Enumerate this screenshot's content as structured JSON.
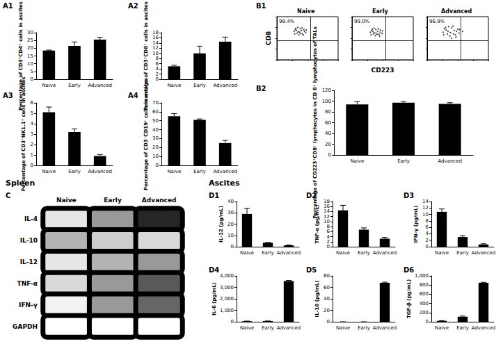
{
  "sections": [
    "Spleen",
    "Ascites"
  ],
  "chart_data": [
    {
      "panel": "A1",
      "type": "bar",
      "ylabel": "Percentage of CD3⁺CD4⁺ cells in ascites",
      "categories": [
        "Naive",
        "Early",
        "Advanced"
      ],
      "values": [
        18.5,
        21.5,
        25.5
      ],
      "errors": [
        0.3,
        2.5,
        1.5
      ],
      "color": "#000000",
      "ylim": [
        0,
        30
      ],
      "yticks": [
        0,
        5,
        10,
        15,
        20,
        25,
        30
      ],
      "grid": false
    },
    {
      "panel": "A2",
      "type": "bar",
      "ylabel": "Percentage of CD3⁺CD8⁺ cells in ascites",
      "categories": [
        "Naive",
        "Early",
        "Advanced"
      ],
      "values": [
        5,
        10,
        14.5
      ],
      "errors": [
        0.4,
        2.8,
        1.8
      ],
      "color": "#000000",
      "ylim": [
        0,
        18
      ],
      "yticks": [
        0,
        2,
        4,
        6,
        8,
        10,
        12,
        14,
        16,
        18
      ],
      "grid": false
    },
    {
      "panel": "A3",
      "type": "bar",
      "ylabel": "Percentage of CD3⁻NK1.1⁺ cells in ascites",
      "categories": [
        "Naive",
        "Early",
        "Advanced"
      ],
      "values": [
        5.1,
        3.2,
        0.9
      ],
      "errors": [
        0.5,
        0.3,
        0.15
      ],
      "color": "#000000",
      "ylim": [
        0,
        6
      ],
      "yticks": [
        0,
        1,
        2,
        3,
        4,
        5,
        6
      ],
      "grid": false
    },
    {
      "panel": "A4",
      "type": "bar",
      "ylabel": "Percentage of CD3⁻CD19⁺ cells in ascites",
      "categories": [
        "Naive",
        "Early",
        "Advanced"
      ],
      "values": [
        55,
        51,
        25
      ],
      "errors": [
        3,
        1,
        3
      ],
      "color": "#000000",
      "ylim": [
        0,
        70
      ],
      "yticks": [
        0,
        10,
        20,
        30,
        40,
        50,
        60,
        70
      ],
      "grid": false
    },
    {
      "panel": "B1",
      "type": "scatter",
      "xlabel": "CD223",
      "ylabel": "CD8",
      "xlim": [
        0,
        100
      ],
      "ylim": [
        0,
        100
      ],
      "xticks": [
        0,
        25,
        50,
        75,
        100
      ],
      "yticks": [
        0,
        25,
        50,
        75,
        100
      ],
      "tick_labels": false,
      "color": "#000000",
      "gate": {
        "x": 55,
        "y": 45
      },
      "panels": [
        {
          "title": "Naive",
          "annotation": "98.4%",
          "points": [
            [
              30,
              70
            ],
            [
              35,
              65
            ],
            [
              38,
              72
            ],
            [
              40,
              68
            ],
            [
              42,
              60
            ],
            [
              33,
              62
            ],
            [
              45,
              66
            ],
            [
              36,
              58
            ],
            [
              28,
              66
            ],
            [
              41,
              74
            ],
            [
              37,
              64
            ],
            [
              44,
              70
            ],
            [
              32,
              68
            ],
            [
              39,
              61
            ],
            [
              47,
              63
            ],
            [
              34,
              75
            ],
            [
              43,
              57
            ],
            [
              29,
              60
            ],
            [
              48,
              69
            ],
            [
              31,
              73
            ]
          ]
        },
        {
          "title": "Early",
          "annotation": "99.0%",
          "points": [
            [
              32,
              68
            ],
            [
              36,
              63
            ],
            [
              39,
              70
            ],
            [
              42,
              66
            ],
            [
              44,
              59
            ],
            [
              35,
              60
            ],
            [
              46,
              64
            ],
            [
              38,
              56
            ],
            [
              30,
              64
            ],
            [
              43,
              72
            ],
            [
              39,
              62
            ],
            [
              46,
              69
            ],
            [
              34,
              66
            ],
            [
              41,
              59
            ],
            [
              49,
              61
            ],
            [
              36,
              73
            ],
            [
              45,
              55
            ],
            [
              31,
              58
            ],
            [
              50,
              67
            ],
            [
              33,
              71
            ]
          ]
        },
        {
          "title": "Advanced",
          "annotation": "96.9%",
          "points": [
            [
              28,
              72
            ],
            [
              34,
              66
            ],
            [
              40,
              74
            ],
            [
              44,
              68
            ],
            [
              46,
              58
            ],
            [
              33,
              60
            ],
            [
              48,
              66
            ],
            [
              37,
              55
            ],
            [
              26,
              64
            ],
            [
              42,
              78
            ],
            [
              38,
              63
            ],
            [
              50,
              71
            ],
            [
              31,
              69
            ],
            [
              43,
              60
            ],
            [
              52,
              62
            ],
            [
              35,
              77
            ],
            [
              47,
              53
            ],
            [
              27,
              58
            ],
            [
              53,
              70
            ],
            [
              30,
              75
            ],
            [
              40,
              50
            ],
            [
              58,
              66
            ]
          ]
        }
      ]
    },
    {
      "panel": "B2",
      "type": "bar",
      "ylabel": "Percentage of CD223⁺CD8⁺ lymphocytes in CD 8⁺ lymphocytes of TALs",
      "categories": [
        "Naive",
        "Early",
        "Advanced"
      ],
      "values": [
        94,
        97,
        95
      ],
      "errors": [
        5,
        2,
        2
      ],
      "color": "#000000",
      "ylim": [
        0,
        120
      ],
      "yticks": [
        0,
        20,
        40,
        60,
        80,
        100,
        120
      ],
      "grid": false
    },
    {
      "panel": "C",
      "type": "heatmap",
      "columns": [
        "Naive",
        "Early",
        "Advanced"
      ],
      "rows": [
        "IL-4",
        "IL-10",
        "IL-12",
        "TNF-α",
        "IFN-γ",
        "GAPDH"
      ],
      "value_range": [
        0,
        1
      ],
      "cells": [
        [
          0.9,
          0.6,
          0.15
        ],
        [
          0.7,
          0.8,
          0.85
        ],
        [
          0.9,
          0.7,
          0.6
        ],
        [
          0.85,
          0.6,
          0.35
        ],
        [
          0.95,
          0.6,
          0.4
        ],
        [
          1,
          1,
          1
        ]
      ]
    },
    {
      "panel": "D1",
      "type": "bar",
      "ylabel": "IL-12 (pg/mL)",
      "categories": [
        "Naive",
        "Early",
        "Advanced"
      ],
      "values": [
        29,
        3.5,
        1.2
      ],
      "errors": [
        5,
        0.3,
        0.3
      ],
      "color": "#000000",
      "ylim": [
        0,
        40
      ],
      "yticks": [
        0,
        10,
        20,
        30,
        40
      ],
      "grid": false
    },
    {
      "panel": "D2",
      "type": "bar",
      "ylabel": "TNF-α (pg/mL)",
      "categories": [
        "Naive",
        "Early",
        "Advanced"
      ],
      "values": [
        14.5,
        6.8,
        3.2
      ],
      "errors": [
        2,
        0.7,
        0.5
      ],
      "color": "#000000",
      "ylim": [
        0,
        18
      ],
      "yticks": [
        0,
        2,
        4,
        6,
        8,
        10,
        12,
        14,
        16,
        18
      ],
      "grid": false
    },
    {
      "panel": "D3",
      "type": "bar",
      "ylabel": "IFN-γ (pg/mL)",
      "categories": [
        "Naive",
        "Early",
        "Advanced"
      ],
      "values": [
        10.8,
        3,
        0.7
      ],
      "errors": [
        0.9,
        0.4,
        0.2
      ],
      "color": "#000000",
      "ylim": [
        0,
        14
      ],
      "yticks": [
        0,
        2,
        4,
        6,
        8,
        10,
        12,
        14
      ],
      "grid": false
    },
    {
      "panel": "D4",
      "type": "bar",
      "ylabel": "IL-6 (pg/mL)",
      "categories": [
        "Naive",
        "Early",
        "Advanced"
      ],
      "values": [
        50,
        60,
        3550
      ],
      "errors": [
        10,
        10,
        50
      ],
      "color": "#000000",
      "ylim": [
        0,
        4000
      ],
      "yticks": [
        0,
        1000,
        2000,
        3000,
        4000
      ],
      "grid": false
    },
    {
      "panel": "D5",
      "type": "bar",
      "ylabel": "IL-10 (pg/mL)",
      "categories": [
        "Naive",
        "Early",
        "Advanced"
      ],
      "values": [
        0,
        0,
        68
      ],
      "errors": [
        0,
        0,
        1
      ],
      "color": "#000000",
      "ylim": [
        0,
        80
      ],
      "yticks": [
        0,
        20,
        40,
        60,
        80
      ],
      "grid": false
    },
    {
      "panel": "D6",
      "type": "bar",
      "ylabel": "TGF-β (pg/mL)",
      "categories": [
        "Naive",
        "Early",
        "Advanced"
      ],
      "values": [
        20,
        110,
        850
      ],
      "errors": [
        5,
        15,
        10
      ],
      "color": "#000000",
      "ylim": [
        0,
        1000
      ],
      "yticks": [
        0,
        200,
        400,
        600,
        800,
        1000
      ],
      "grid": false
    }
  ]
}
